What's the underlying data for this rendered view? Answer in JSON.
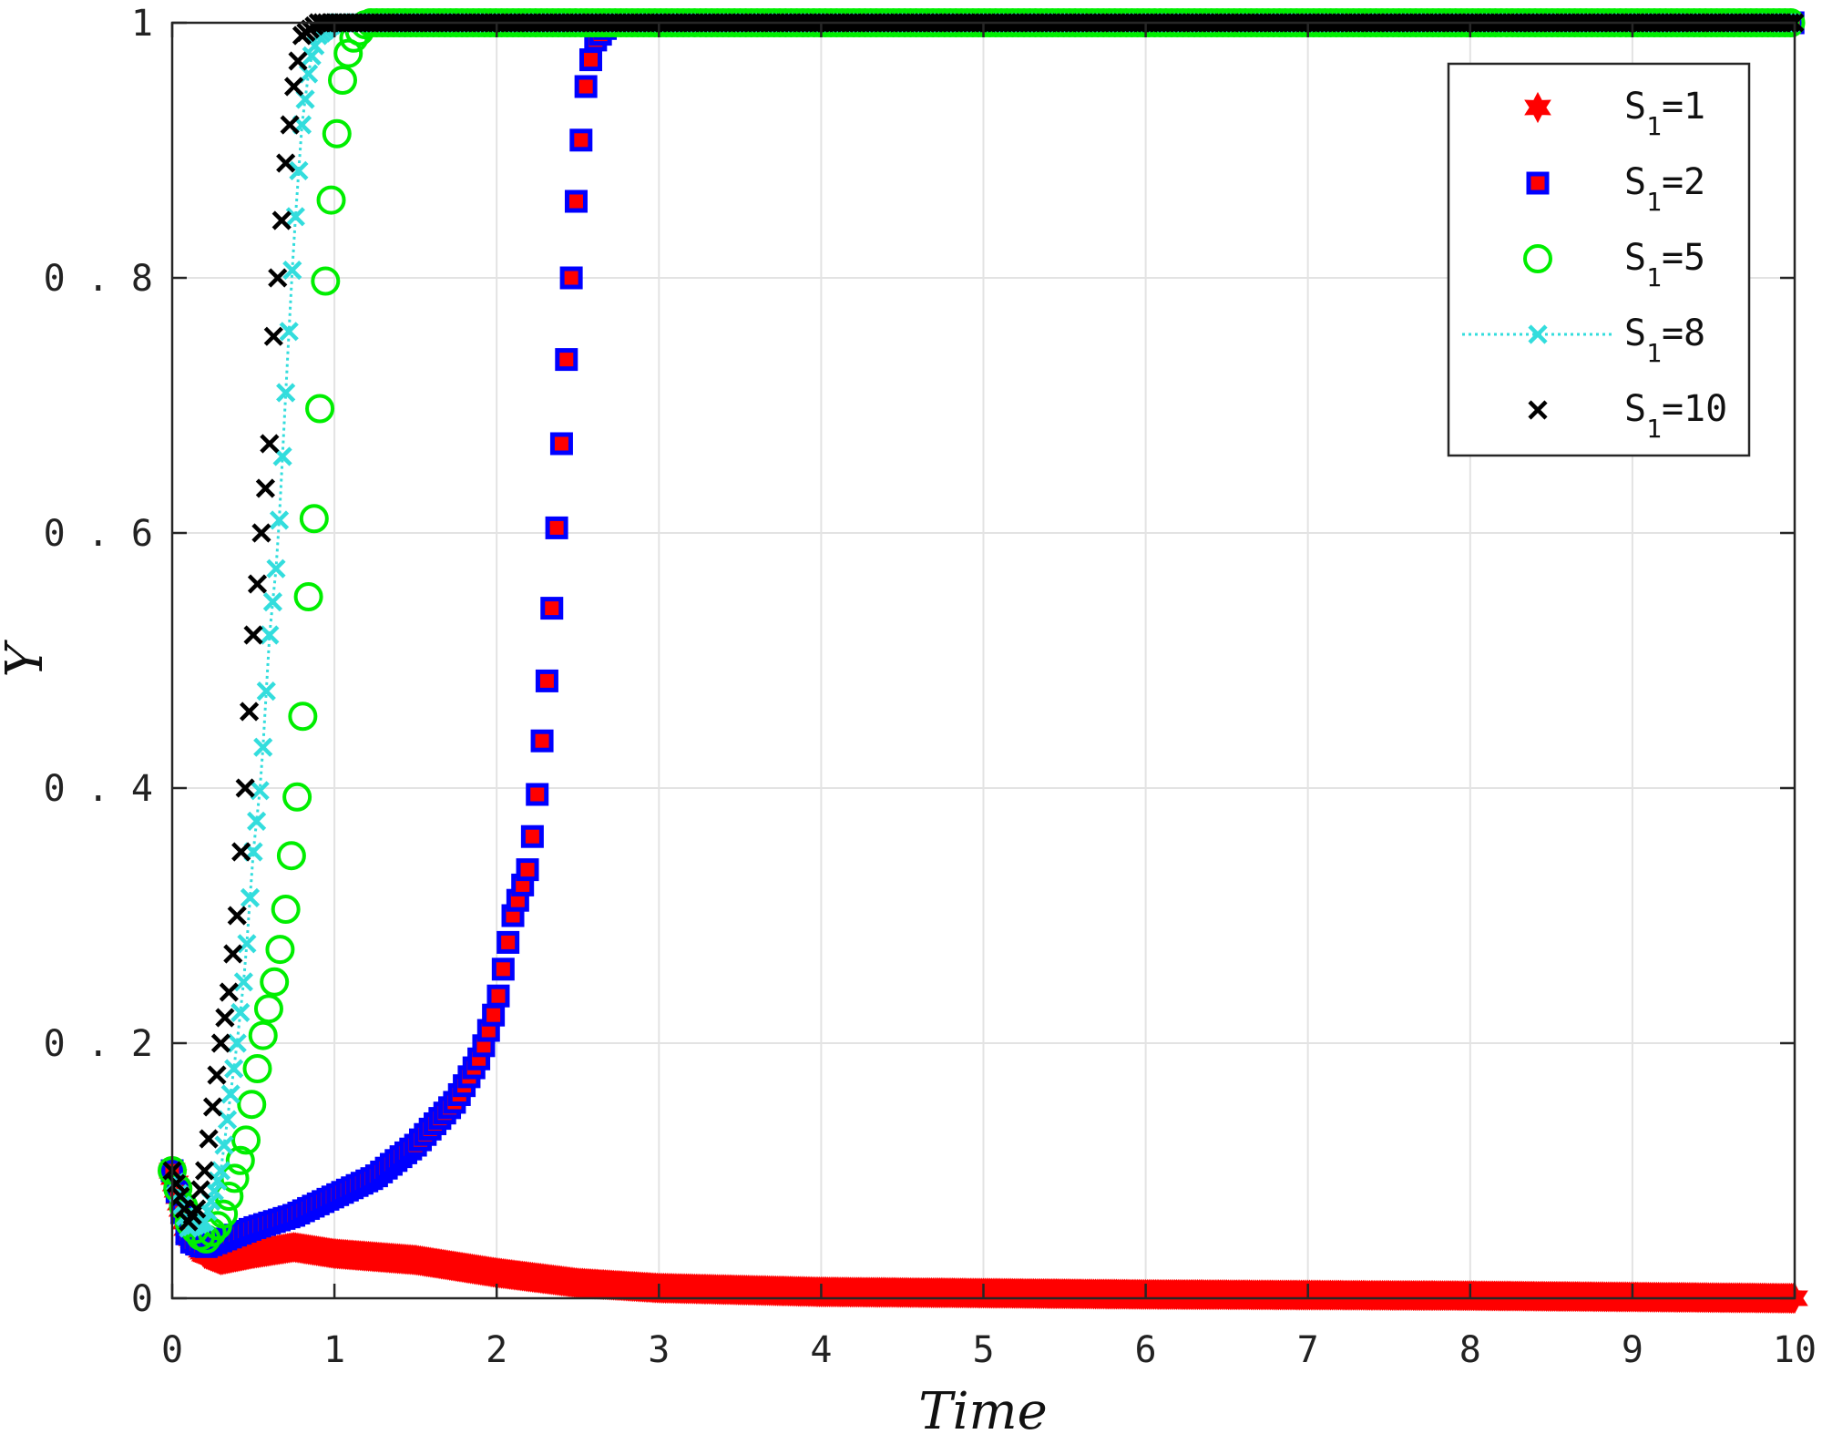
{
  "chart_data": {
    "type": "scatter",
    "xlabel": "Time",
    "ylabel": "Y",
    "xlim": [
      0,
      10
    ],
    "ylim": [
      0,
      1
    ],
    "xticks": [
      "0",
      "1",
      "2",
      "3",
      "4",
      "5",
      "6",
      "7",
      "8",
      "9",
      "10"
    ],
    "yticks": [
      "0",
      "0.2",
      "0.4",
      "0.6",
      "0.8",
      "1"
    ],
    "grid": true,
    "legend_position": "top-right",
    "series": [
      {
        "label_base": "S",
        "label_sub": "1",
        "label_rest": "=1",
        "marker": "hexagram",
        "color": "#ff0000",
        "edge": "#ff0000",
        "line": false,
        "x": [
          0.0,
          0.1,
          0.2,
          0.3,
          0.5,
          0.75,
          1.0,
          1.5,
          2.0,
          2.5,
          3.0,
          4.0,
          5.0,
          6.0,
          8.0,
          10.0
        ],
        "y": [
          0.1,
          0.05,
          0.035,
          0.03,
          0.035,
          0.04,
          0.035,
          0.03,
          0.02,
          0.012,
          0.008,
          0.005,
          0.004,
          0.003,
          0.002,
          0.0
        ]
      },
      {
        "label_base": "S",
        "label_sub": "1",
        "label_rest": "=2",
        "marker": "square",
        "color": "#ff0000",
        "edge": "#0000ff",
        "line": false,
        "x": [
          0.0,
          0.1,
          0.2,
          0.3,
          0.5,
          0.75,
          1.0,
          1.25,
          1.5,
          1.75,
          1.9,
          2.0,
          2.1,
          2.2,
          2.25,
          2.3,
          2.35,
          2.4,
          2.45,
          2.5,
          2.55,
          2.6,
          2.7,
          3.0,
          4.0,
          6.0,
          8.0,
          10.0
        ],
        "y": [
          0.1,
          0.045,
          0.04,
          0.045,
          0.055,
          0.065,
          0.08,
          0.095,
          0.12,
          0.155,
          0.19,
          0.23,
          0.3,
          0.34,
          0.395,
          0.465,
          0.56,
          0.67,
          0.78,
          0.88,
          0.95,
          0.985,
          1.0,
          1.0,
          1.0,
          1.0,
          1.0,
          1.0
        ]
      },
      {
        "label_base": "S",
        "label_sub": "1",
        "label_rest": "=5",
        "marker": "circle",
        "color": "none",
        "edge": "#00ee00",
        "line": false,
        "x": [
          0.0,
          0.1,
          0.2,
          0.3,
          0.35,
          0.4,
          0.45,
          0.5,
          0.55,
          0.6,
          0.65,
          0.7,
          0.75,
          0.8,
          0.82,
          0.84,
          0.86,
          0.88,
          0.9,
          0.92,
          0.95,
          1.0,
          1.05,
          1.1,
          1.2,
          1.5,
          2.0,
          3.0,
          4.0,
          6.0,
          8.0,
          10.0
        ],
        "y": [
          0.1,
          0.06,
          0.045,
          0.06,
          0.08,
          0.1,
          0.12,
          0.16,
          0.2,
          0.23,
          0.26,
          0.305,
          0.365,
          0.435,
          0.52,
          0.55,
          0.585,
          0.62,
          0.66,
          0.735,
          0.81,
          0.895,
          0.955,
          0.985,
          1.0,
          1.0,
          1.0,
          1.0,
          1.0,
          1.0,
          1.0,
          1.0
        ]
      },
      {
        "label_base": "S",
        "label_sub": "1",
        "label_rest": "=8",
        "marker": "x",
        "color": "#33dddd",
        "edge": "#33dddd",
        "line": true,
        "x": [
          0.0,
          0.1,
          0.2,
          0.3,
          0.35,
          0.4,
          0.45,
          0.5,
          0.55,
          0.6,
          0.65,
          0.7,
          0.75,
          0.8,
          0.85,
          0.9,
          1.0,
          1.5,
          2.0,
          3.0,
          4.0,
          5.0,
          6.0,
          7.0,
          8.0,
          9.0,
          10.0
        ],
        "y": [
          0.1,
          0.055,
          0.06,
          0.1,
          0.15,
          0.2,
          0.26,
          0.35,
          0.41,
          0.52,
          0.585,
          0.71,
          0.83,
          0.92,
          0.97,
          0.99,
          1.0,
          1.0,
          1.0,
          1.0,
          1.0,
          1.0,
          1.0,
          1.0,
          1.0,
          1.0,
          1.0
        ]
      },
      {
        "label_base": "S",
        "label_sub": "1",
        "label_rest": "=10",
        "marker": "x",
        "color": "#000000",
        "edge": "#000000",
        "line": false,
        "x": [
          0.0,
          0.1,
          0.15,
          0.2,
          0.25,
          0.3,
          0.35,
          0.4,
          0.45,
          0.5,
          0.55,
          0.6,
          0.62,
          0.65,
          0.7,
          0.75,
          0.8,
          0.9,
          1.0,
          1.5,
          2.0,
          3.0,
          4.0,
          5.0,
          6.0,
          7.0,
          8.0,
          9.0,
          10.0
        ],
        "y": [
          0.1,
          0.06,
          0.07,
          0.1,
          0.15,
          0.2,
          0.24,
          0.3,
          0.4,
          0.52,
          0.6,
          0.67,
          0.745,
          0.8,
          0.89,
          0.95,
          0.99,
          1.0,
          1.0,
          1.0,
          1.0,
          1.0,
          1.0,
          1.0,
          1.0,
          1.0,
          1.0,
          1.0,
          1.0
        ]
      }
    ]
  }
}
